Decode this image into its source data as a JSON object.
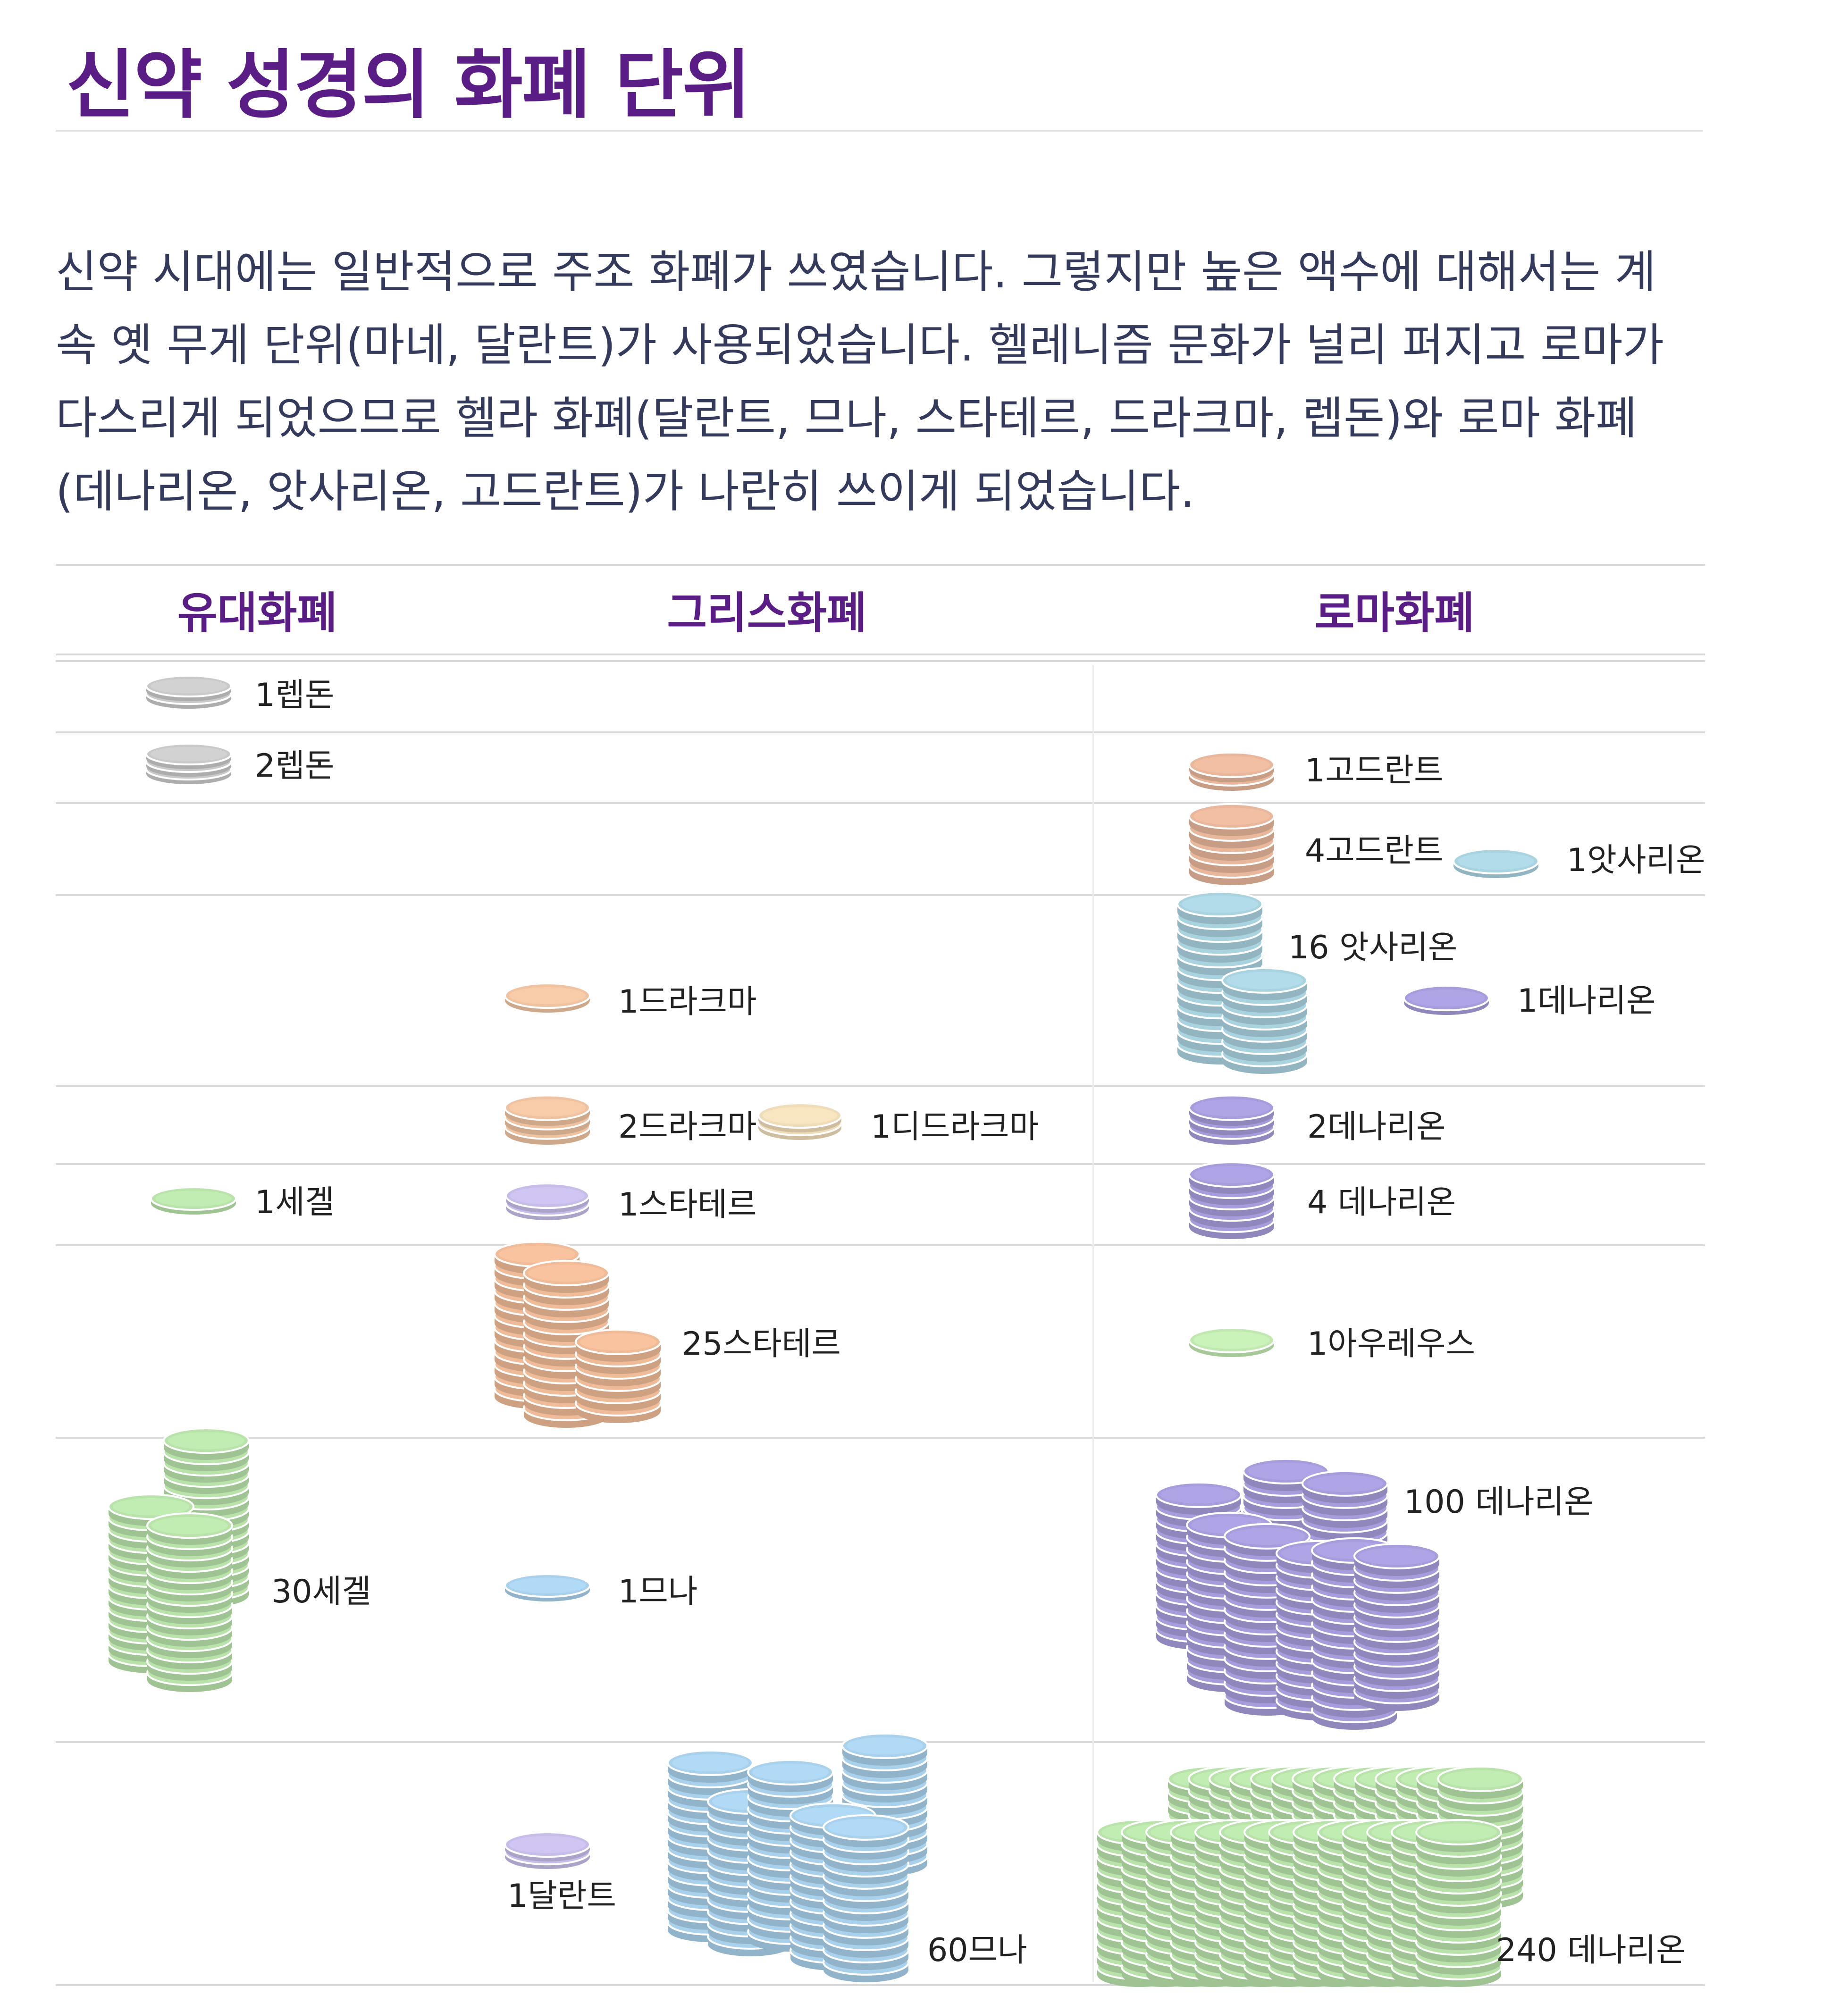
{
  "title": "신약 성경의 화폐 단위",
  "intro_lines": [
    "신약 시대에는 일반적으로 주조 화폐가 쓰였습니다. 그렇지만 높은 액수에 대해서는 계",
    "속 옛 무게 단위(마네, 달란트)가 사용되었습니다. 헬레니즘 문화가 널리 퍼지고 로마가",
    "다스리게 되었으므로 헬라 화폐(달란트, 므나, 스타테르, 드라크마, 렙돈)와 로마 화폐",
    "(데나리온, 앗사리온, 고드란트)가 나란히 쓰이게 되었습니다."
  ],
  "columns": {
    "jewish": "유대화폐",
    "greek": "그리스화폐",
    "roman": "로마화폐"
  },
  "labels": {
    "lepton1": "1렙돈",
    "lepton2": "2렙돈",
    "quadrans1": "1고드란트",
    "quadrans4": "4고드란트",
    "assarion1": "1앗사리온",
    "assarion16": "16 앗사리온",
    "drachma1": "1드라크마",
    "denarius1": "1데나리온",
    "drachma2": "2드라크마",
    "didrachma1": "1디드라크마",
    "denarius2": "2데나리온",
    "shekel1": "1세겔",
    "stater1": "1스타테르",
    "denarius4": "4 데나리온",
    "stater25": "25스타테르",
    "aureus1": "1아우레우스",
    "shekel30": "30세겔",
    "mina1": "1므나",
    "denarius100": "100 데나리온",
    "talent1": "1달란트",
    "mina60": "60므나",
    "denarius240": "240 데나리온"
  },
  "coin_colors": {
    "lepton": "#c9c9c9",
    "quadrans": "#e9b79c",
    "assarion": "#aad3e0",
    "drachma": "#efc3a2",
    "didrachma": "#efdcb8",
    "denarius": "#a79ddc",
    "shekel": "#b9e3ab",
    "stater_single": "#c8bde9",
    "stater_stack": "#efbb98",
    "aureus": "#c2e8b2",
    "mina": "#a9d1ec",
    "talent": "#c8bde9"
  }
}
